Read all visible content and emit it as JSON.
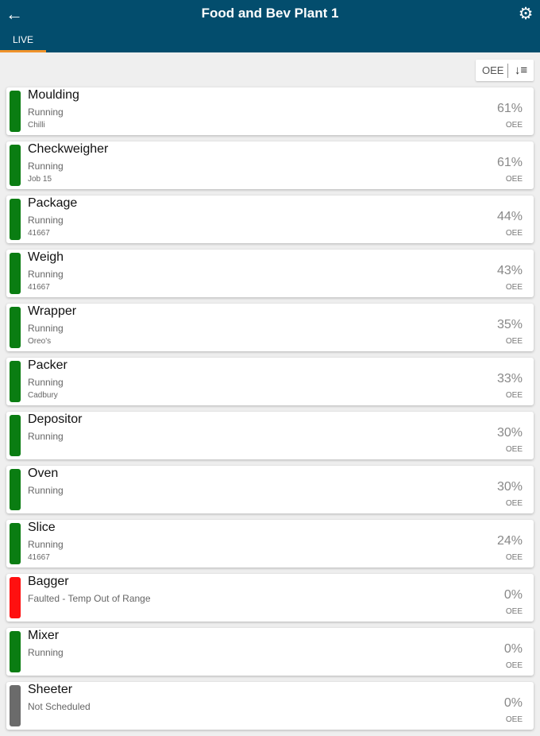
{
  "header": {
    "title": "Food and Bev Plant 1",
    "back_icon": "arrow-left-icon",
    "settings_icon": "gear-icon"
  },
  "tabs": [
    {
      "label": "LIVE",
      "active": true
    }
  ],
  "sort": {
    "label": "OEE",
    "icon": "sort-descending-icon"
  },
  "colors": {
    "running": "#0a7d12",
    "faulted": "#ff1010",
    "not_scheduled": "#6b6b6b",
    "header": "#034d6d",
    "tab_indicator": "#f0932b"
  },
  "machines": [
    {
      "name": "Moulding",
      "status": "Running",
      "job": "Chilli",
      "value": "61%",
      "unit": "OEE",
      "state": "running"
    },
    {
      "name": "Checkweigher",
      "status": "Running",
      "job": "Job 15",
      "value": "61%",
      "unit": "OEE",
      "state": "running"
    },
    {
      "name": "Package",
      "status": "Running",
      "job": "41667",
      "value": "44%",
      "unit": "OEE",
      "state": "running"
    },
    {
      "name": "Weigh",
      "status": "Running",
      "job": "41667",
      "value": "43%",
      "unit": "OEE",
      "state": "running"
    },
    {
      "name": "Wrapper",
      "status": "Running",
      "job": "Oreo's",
      "value": "35%",
      "unit": "OEE",
      "state": "running"
    },
    {
      "name": "Packer",
      "status": "Running",
      "job": "Cadbury",
      "value": "33%",
      "unit": "OEE",
      "state": "running"
    },
    {
      "name": "Depositor",
      "status": "Running",
      "job": "",
      "value": "30%",
      "unit": "OEE",
      "state": "running"
    },
    {
      "name": "Oven",
      "status": "Running",
      "job": "",
      "value": "30%",
      "unit": "OEE",
      "state": "running"
    },
    {
      "name": "Slice",
      "status": "Running",
      "job": "41667",
      "value": "24%",
      "unit": "OEE",
      "state": "running"
    },
    {
      "name": "Bagger",
      "status": "Faulted - Temp Out of Range",
      "job": "",
      "value": "0%",
      "unit": "OEE",
      "state": "faulted"
    },
    {
      "name": "Mixer",
      "status": "Running",
      "job": "",
      "value": "0%",
      "unit": "OEE",
      "state": "running"
    },
    {
      "name": "Sheeter",
      "status": "Not Scheduled",
      "job": "",
      "value": "0%",
      "unit": "OEE",
      "state": "not_scheduled"
    }
  ]
}
